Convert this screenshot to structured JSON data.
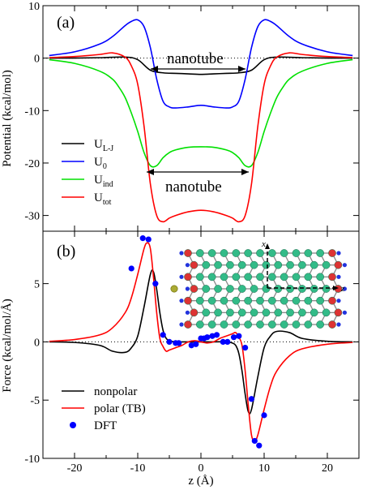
{
  "figure": {
    "shared_xlabel": "z (Å)",
    "x_ticks": [
      -20,
      -10,
      0,
      10,
      20
    ]
  },
  "chart_data": [
    {
      "type": "line",
      "panel_label": "(a)",
      "ylabel": "Potential (kcal/mol)",
      "xlim": [
        -25,
        25
      ],
      "ylim": [
        -33,
        10
      ],
      "y_ticks": [
        10,
        0,
        -10,
        -20,
        -30
      ],
      "annotations": [
        "nanotube",
        "nanotube"
      ],
      "legend": {
        "placement": "center-left",
        "entries": [
          {
            "base": "U",
            "sub": "L-J",
            "color": "#000000"
          },
          {
            "base": "U",
            "sub": "0",
            "color": "#0000ff"
          },
          {
            "base": "U",
            "sub": "ind",
            "color": "#00e000"
          },
          {
            "base": "U",
            "sub": "tot",
            "color": "#ff0000"
          }
        ]
      },
      "series": [
        {
          "name": "UL-J",
          "color": "#000000",
          "x": [
            -24,
            -20,
            -16,
            -12,
            -10,
            -8,
            -6,
            -4,
            -2,
            0,
            2,
            4,
            6,
            8,
            10,
            12,
            16,
            20,
            24
          ],
          "y": [
            0,
            0.02,
            0.08,
            0.2,
            -0.3,
            -2.3,
            -2.8,
            -2.9,
            -3.0,
            -3.1,
            -3.0,
            -2.9,
            -2.8,
            -2.3,
            -0.3,
            0.2,
            0.08,
            0.02,
            0
          ]
        },
        {
          "name": "U0",
          "color": "#0000ff",
          "x": [
            -24,
            -20,
            -16,
            -14,
            -12,
            -11,
            -10,
            -9,
            -8,
            -7,
            -6,
            -5,
            -4,
            -2,
            0,
            2,
            4,
            5,
            6,
            7,
            8,
            9,
            10,
            11,
            12,
            14,
            16,
            20,
            24
          ],
          "y": [
            0.5,
            1.2,
            2.7,
            4.1,
            6.2,
            7.0,
            7.3,
            6.0,
            2.0,
            -4.0,
            -8.2,
            -9.3,
            -9.5,
            -9.3,
            -9.0,
            -9.3,
            -9.5,
            -9.3,
            -8.2,
            -4.0,
            2.0,
            6.0,
            7.3,
            7.0,
            6.2,
            4.1,
            2.7,
            1.2,
            0.5
          ]
        },
        {
          "name": "Uind",
          "color": "#00e000",
          "x": [
            -24,
            -20,
            -16,
            -14,
            -13,
            -12,
            -11,
            -10,
            -9,
            -8,
            -7,
            -6,
            -5,
            -4,
            -2,
            0,
            2,
            4,
            5,
            6,
            7,
            8,
            9,
            10,
            11,
            12,
            13,
            14,
            16,
            20,
            24
          ],
          "y": [
            -0.3,
            -1.0,
            -2.5,
            -4.0,
            -5.5,
            -7.5,
            -10.5,
            -14.0,
            -18.0,
            -20.5,
            -20.5,
            -19.0,
            -18.0,
            -17.5,
            -17.0,
            -16.9,
            -17.0,
            -17.5,
            -18.0,
            -19.0,
            -20.5,
            -20.5,
            -18.0,
            -14.0,
            -10.5,
            -7.5,
            -5.5,
            -4.0,
            -2.5,
            -1.0,
            -0.3
          ]
        },
        {
          "name": "Utot",
          "color": "#ff0000",
          "x": [
            -24,
            -20,
            -16,
            -14,
            -12,
            -11,
            -10,
            -9,
            -8,
            -7,
            -6,
            -5,
            -4,
            -2,
            0,
            2,
            4,
            5,
            6,
            7,
            8,
            9,
            10,
            11,
            12,
            14,
            16,
            20,
            24
          ],
          "y": [
            0.1,
            0.3,
            0.7,
            1.0,
            0.2,
            -1.5,
            -5.0,
            -13.0,
            -24.0,
            -30.0,
            -31.2,
            -30.5,
            -30.0,
            -29.3,
            -29.0,
            -29.3,
            -30.0,
            -30.5,
            -31.2,
            -30.0,
            -24.0,
            -13.0,
            -5.0,
            -1.5,
            0.2,
            1.0,
            0.7,
            0.3,
            0.1
          ]
        }
      ]
    },
    {
      "type": "line",
      "panel_label": "(b)",
      "ylabel": "Force (kcal/mol/Å)",
      "xlim": [
        -25,
        25
      ],
      "ylim": [
        -10,
        9.5
      ],
      "y_ticks": [
        5,
        0,
        -5,
        -10
      ],
      "inset_axis_labels": [
        "x",
        "z"
      ],
      "legend": {
        "placement": "lower-left",
        "entries": [
          {
            "label": "nonpolar",
            "color": "#000000",
            "kind": "line"
          },
          {
            "label": "polar (TB)",
            "color": "#ff0000",
            "kind": "line"
          },
          {
            "label": "DFT",
            "color": "#0000ff",
            "kind": "marker"
          }
        ]
      },
      "series": [
        {
          "name": "nonpolar",
          "color": "#000000",
          "x": [
            -24,
            -20,
            -16,
            -14,
            -12,
            -11,
            -10,
            -9,
            -8,
            -7.5,
            -7,
            -6.5,
            -6,
            -5.5,
            -5,
            -4,
            -2,
            0,
            2,
            4,
            5,
            5.5,
            6,
            6.5,
            7,
            7.5,
            8,
            9,
            10,
            11,
            12,
            14,
            16,
            20,
            24
          ],
          "y": [
            0,
            -0.05,
            -0.3,
            -0.8,
            -0.9,
            -0.5,
            0.5,
            3.0,
            5.8,
            6.0,
            4.5,
            2.5,
            1.0,
            0.3,
            0.1,
            0,
            0,
            0,
            0,
            0,
            -0.1,
            -0.3,
            -1.0,
            -2.5,
            -4.5,
            -6.0,
            -5.8,
            -3.0,
            -0.5,
            0.5,
            0.9,
            0.8,
            0.3,
            0.05,
            0
          ]
        },
        {
          "name": "polar (TB)",
          "color": "#ff0000",
          "x": [
            -24,
            -20,
            -16,
            -14,
            -12,
            -11,
            -10,
            -9,
            -8.5,
            -8,
            -7.5,
            -7,
            -6.5,
            -6,
            -5.5,
            -5,
            -4,
            -3,
            -2,
            -1,
            0,
            1,
            2,
            3,
            4,
            5,
            5.5,
            6,
            6.5,
            7,
            7.5,
            8,
            8.5,
            9,
            10,
            11,
            12,
            14,
            16,
            20,
            24
          ],
          "y": [
            0.05,
            0.2,
            0.6,
            1.2,
            2.5,
            3.8,
            5.8,
            8.0,
            8.5,
            8.0,
            5.5,
            2.5,
            0.3,
            -0.4,
            -0.8,
            -0.7,
            -0.5,
            -0.3,
            0,
            0.1,
            0,
            -0.1,
            0,
            0.3,
            0.5,
            0.7,
            0.8,
            0.4,
            -0.3,
            -2.5,
            -5.5,
            -8.0,
            -8.5,
            -8.0,
            -5.8,
            -3.8,
            -2.5,
            -1.2,
            -0.6,
            -0.2,
            -0.05
          ]
        },
        {
          "name": "DFT",
          "color": "#0000ff",
          "kind": "scatter",
          "x": [
            -11,
            -9.2,
            -8.3,
            -7.2,
            -6,
            -5,
            -4,
            -3.5,
            -1.5,
            -0.8,
            0,
            0.5,
            1,
            1.8,
            2.5,
            3.5,
            4.2,
            5.2,
            6,
            7,
            8,
            8.5,
            9.2,
            10
          ],
          "y": [
            6.3,
            8.9,
            8.8,
            5.0,
            0.6,
            0.0,
            -0.1,
            -0.1,
            -0.3,
            -0.2,
            0.3,
            0.3,
            0.4,
            0.5,
            0.6,
            0.0,
            0.0,
            0.4,
            0.5,
            -0.5,
            -4.9,
            -8.5,
            -8.9,
            -6.3
          ]
        }
      ]
    }
  ]
}
